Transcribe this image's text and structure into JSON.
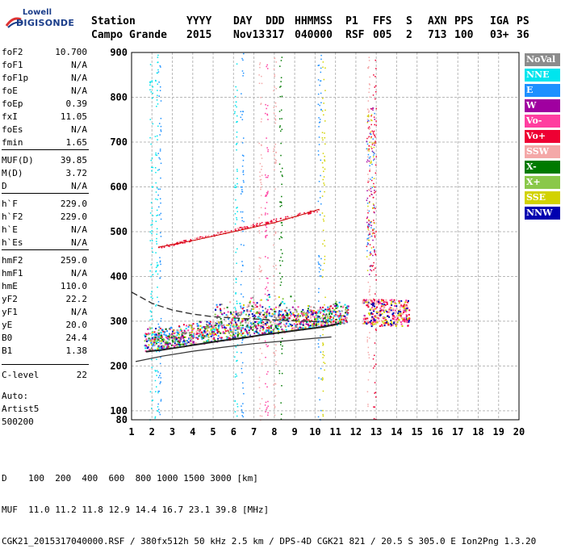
{
  "logo": {
    "line1": "Lowell",
    "line2": "DIGISONDE"
  },
  "header": {
    "cols": [
      {
        "h": "Station",
        "v": "Campo Grande"
      },
      {
        "h": "YYYY",
        "v": "2015"
      },
      {
        "h": "DAY",
        "v": "Nov13"
      },
      {
        "h": "DDD",
        "v": "317"
      },
      {
        "h": "HHMMSS",
        "v": "040000"
      },
      {
        "h": "P1",
        "v": "RSF"
      },
      {
        "h": "FFS",
        "v": "005"
      },
      {
        "h": "S",
        "v": "2"
      },
      {
        "h": "AXN",
        "v": "713"
      },
      {
        "h": "PPS",
        "v": "100"
      },
      {
        "h": "IGA",
        "v": "03+"
      },
      {
        "h": "PS",
        "v": "36"
      }
    ]
  },
  "params": [
    {
      "k": "foF2",
      "v": "10.700"
    },
    {
      "k": "foF1",
      "v": "N/A"
    },
    {
      "k": "foF1p",
      "v": "N/A"
    },
    {
      "k": "foE",
      "v": "N/A"
    },
    {
      "k": "foEp",
      "v": "0.39"
    },
    {
      "k": "fxI",
      "v": "11.05"
    },
    {
      "k": "foEs",
      "v": "N/A"
    },
    {
      "k": "fmin",
      "v": "1.65"
    },
    {
      "k": "MUF(D)",
      "v": "39.85"
    },
    {
      "k": "M(D)",
      "v": "3.72"
    },
    {
      "k": "D",
      "v": "N/A"
    },
    {
      "k": "h`F",
      "v": "229.0"
    },
    {
      "k": "h`F2",
      "v": "229.0"
    },
    {
      "k": "h`E",
      "v": "N/A"
    },
    {
      "k": "h`Es",
      "v": "N/A"
    },
    {
      "k": "hmF2",
      "v": "259.0"
    },
    {
      "k": "hmF1",
      "v": "N/A"
    },
    {
      "k": "hmE",
      "v": "110.0"
    },
    {
      "k": "yF2",
      "v": "22.2"
    },
    {
      "k": "yF1",
      "v": "N/A"
    },
    {
      "k": "yE",
      "v": "20.0"
    },
    {
      "k": "B0",
      "v": "24.4"
    },
    {
      "k": "B1",
      "v": "1.38"
    },
    {
      "k": "C-level",
      "v": "22"
    }
  ],
  "auto": [
    "Auto:",
    "Artist5",
    "500200"
  ],
  "legend": [
    {
      "label": "NoVal",
      "color": "#8c8c8c"
    },
    {
      "label": "NNE",
      "color": "#00e5ee"
    },
    {
      "label": "E",
      "color": "#1e90ff"
    },
    {
      "label": "W",
      "color": "#a000a0"
    },
    {
      "label": "Vo-",
      "color": "#ff3ea0"
    },
    {
      "label": "Vo+",
      "color": "#ee0033"
    },
    {
      "label": "SSW",
      "color": "#f4a8a8"
    },
    {
      "label": "X-",
      "color": "#007a00"
    },
    {
      "label": "X+",
      "color": "#8ac84a"
    },
    {
      "label": "SSE",
      "color": "#d2d200"
    },
    {
      "label": "NNW",
      "color": "#0000b0"
    }
  ],
  "chart_data": {
    "type": "scatter",
    "xlim": [
      1,
      20
    ],
    "ylim": [
      80,
      900
    ],
    "xticks": [
      1,
      2,
      3,
      4,
      5,
      6,
      7,
      8,
      9,
      10,
      11,
      12,
      13,
      14,
      15,
      16,
      17,
      18,
      19,
      20
    ],
    "yticks": [
      100,
      200,
      300,
      400,
      500,
      600,
      700,
      800,
      900
    ],
    "yextra_label": "80",
    "grid": true,
    "o_trace": {
      "x": [
        1.7,
        2.5,
        3.5,
        4.5,
        5.5,
        6.5,
        7.5,
        8.5,
        9.5,
        10.5,
        11.2
      ],
      "y": [
        232,
        236,
        243,
        250,
        257,
        263,
        270,
        276,
        282,
        288,
        295
      ]
    },
    "profile_line": {
      "x": [
        1.2,
        2.5,
        4,
        5.5,
        7,
        8.5,
        10,
        10.8
      ],
      "y": [
        210,
        222,
        233,
        242,
        250,
        256,
        262,
        265
      ]
    },
    "dashed_line": {
      "x": [
        1.0,
        2.0,
        3.0,
        4.0,
        5.0,
        6.5,
        8.0,
        9.5,
        10.8
      ],
      "y": [
        365,
        340,
        325,
        316,
        310,
        306,
        303,
        300,
        298
      ]
    },
    "upper_trace": {
      "x": [
        2.3,
        4,
        6,
        8,
        9.5,
        10.2
      ],
      "y": [
        465,
        480,
        500,
        520,
        540,
        550
      ]
    },
    "f2_cluster_x": [
      12.3,
      14.6
    ],
    "f2_cluster_y": [
      290,
      350
    ]
  },
  "footer": {
    "line1": "D    100  200  400  600  800 1000 1500 3000 [km]",
    "line2": "MUF  11.0 11.2 11.8 12.9 14.4 16.7 23.1 39.8 [MHz]",
    "line3": "CGK21_2015317040000.RSF / 380fx512h 50 kHz 2.5 km / DPS-4D CGK21 821 / 20.5 S 305.0 E Ion2Png 1.3.20"
  }
}
